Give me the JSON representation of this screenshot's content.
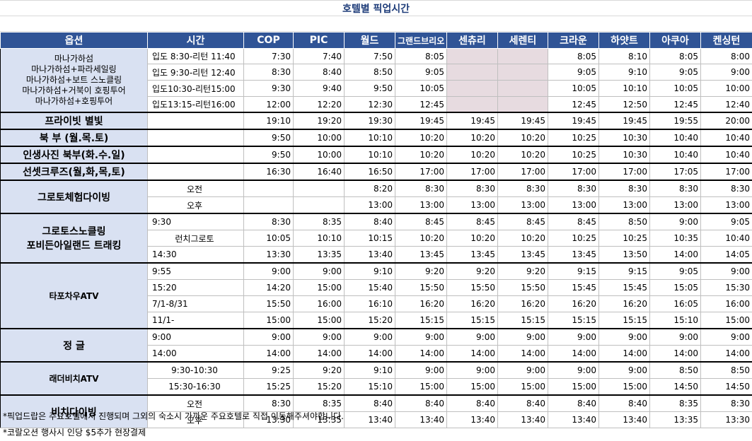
{
  "title": "호텔별 픽업시간",
  "headers": [
    "옵션",
    "시간",
    "COP",
    "PIC",
    "월드",
    "그랜드브리오",
    "센츄리",
    "세렌티",
    "크라운",
    "하얏트",
    "아쿠아",
    "켄싱턴"
  ],
  "groups": [
    {
      "name_lines": [
        "마나가하섬",
        "마나가하섬+파라세일링",
        "마나가하섬+보트 스노클링",
        "마나가하섬+거북이 호핑투어",
        "마나가하섬+호핑투어"
      ],
      "rows": [
        {
          "time": "입도 8:30-리턴 11:40",
          "values": [
            "7:30",
            "7:40",
            "7:50",
            "8:05",
            "",
            "",
            "8:05",
            "8:10",
            "8:05",
            "8:00"
          ]
        },
        {
          "time": "입도 9:30-리턴 12:40",
          "values": [
            "8:30",
            "8:40",
            "8:50",
            "9:05",
            "",
            "",
            "9:05",
            "9:10",
            "9:05",
            "9:00"
          ]
        },
        {
          "time": "입도10:30-리턴15:00",
          "values": [
            "9:30",
            "9:40",
            "9:50",
            "10:05",
            "",
            "",
            "10:05",
            "10:10",
            "10:05",
            "10:00"
          ]
        },
        {
          "time": "입도13:15-리턴16:00",
          "values": [
            "12:00",
            "12:20",
            "12:30",
            "12:45",
            "",
            "",
            "12:45",
            "12:50",
            "12:45",
            "12:40"
          ]
        }
      ]
    },
    {
      "name_lines": [
        "프라이빗 별빛"
      ],
      "rows": [
        {
          "time": "",
          "values": [
            "19:10",
            "19:20",
            "19:30",
            "19:45",
            "19:45",
            "19:45",
            "19:45",
            "19:45",
            "19:55",
            "20:00"
          ]
        }
      ]
    },
    {
      "name_lines": [
        "북  부 (월.목.토)"
      ],
      "rows": [
        {
          "time": "",
          "values": [
            "9:50",
            "10:00",
            "10:10",
            "10:20",
            "10:20",
            "10:20",
            "10:25",
            "10:30",
            "10:40",
            "10:40"
          ]
        }
      ]
    },
    {
      "name_lines": [
        "인생사진 북부(화.수.일)"
      ],
      "rows": [
        {
          "time": "",
          "values": [
            "9:50",
            "10:00",
            "10:10",
            "10:20",
            "10:20",
            "10:20",
            "10:25",
            "10:30",
            "10:40",
            "10:40"
          ]
        }
      ]
    },
    {
      "name_lines": [
        "선셋크루즈(월,화,목,토)"
      ],
      "rows": [
        {
          "time": "",
          "values": [
            "16:30",
            "16:40",
            "16:50",
            "17:00",
            "17:00",
            "17:00",
            "17:00",
            "17:00",
            "17:05",
            "17:00"
          ]
        }
      ]
    },
    {
      "name_lines": [
        "그로토체험다이빙"
      ],
      "rows": [
        {
          "time": "오전",
          "values": [
            "",
            "",
            "8:20",
            "8:30",
            "8:30",
            "8:30",
            "8:30",
            "8:30",
            "8:30",
            "8:30"
          ]
        },
        {
          "time": "오후",
          "values": [
            "",
            "",
            "13:00",
            "13:00",
            "13:00",
            "13:00",
            "13:00",
            "13:00",
            "13:00",
            "13:00"
          ]
        }
      ]
    },
    {
      "name_lines": [
        "그로토스노클링",
        "포비든아일랜드 트래킹"
      ],
      "rows": [
        {
          "time": "9:30",
          "values": [
            "8:30",
            "8:35",
            "8:40",
            "8:45",
            "8:45",
            "8:45",
            "8:45",
            "8:50",
            "9:00",
            "9:05"
          ]
        },
        {
          "time": "런치그로토",
          "values": [
            "10:05",
            "10:10",
            "10:15",
            "10:20",
            "10:20",
            "10:20",
            "10:25",
            "10:25",
            "10:35",
            "10:40"
          ]
        },
        {
          "time": "14:30",
          "values": [
            "13:30",
            "13:35",
            "13:40",
            "13:45",
            "13:45",
            "13:45",
            "13:45",
            "13:50",
            "14:00",
            "14:05"
          ]
        }
      ]
    },
    {
      "name_lines": [
        "타포차우ATV"
      ],
      "rows": [
        {
          "time": "9:55",
          "values": [
            "9:00",
            "9:00",
            "9:10",
            "9:20",
            "9:20",
            "9:20",
            "9:15",
            "9:15",
            "9:05",
            "9:00"
          ]
        },
        {
          "time": "15:20",
          "values": [
            "14:20",
            "15:00",
            "15:40",
            "15:50",
            "15:50",
            "15:50",
            "15:45",
            "15:45",
            "15:05",
            "15:30"
          ]
        },
        {
          "time": "7/1-8/31",
          "values": [
            "15:50",
            "16:00",
            "16:10",
            "16:20",
            "16:20",
            "16:20",
            "16:20",
            "16:20",
            "16:05",
            "16:00"
          ]
        },
        {
          "time": "11/1-",
          "values": [
            "15:00",
            "15:00",
            "15:20",
            "15:15",
            "15:15",
            "15:15",
            "15:15",
            "15:15",
            "15:10",
            "15:00"
          ]
        }
      ]
    },
    {
      "name_lines": [
        "정   글"
      ],
      "rows": [
        {
          "time": "9:00",
          "values": [
            "9:00",
            "9:00",
            "9:00",
            "9:00",
            "9:00",
            "9:00",
            "9:00",
            "9:00",
            "9:00",
            "9:00"
          ]
        },
        {
          "time": "14:00",
          "values": [
            "14:00",
            "14:00",
            "14:00",
            "14:00",
            "14:00",
            "14:00",
            "14:00",
            "14:00",
            "14:00",
            "14:00"
          ]
        }
      ]
    },
    {
      "name_lines": [
        "래더비치ATV"
      ],
      "rows": [
        {
          "time": "9:30-10:30",
          "values": [
            "9:25",
            "9:20",
            "9:10",
            "9:00",
            "9:00",
            "9:00",
            "9:00",
            "9:00",
            "8:50",
            "8:50"
          ]
        },
        {
          "time": "15:30-16:30",
          "values": [
            "15:25",
            "15:20",
            "15:10",
            "15:00",
            "15:00",
            "15:00",
            "15:00",
            "15:00",
            "14:50",
            "14:50"
          ]
        }
      ]
    },
    {
      "name_lines": [
        "비치다이빙"
      ],
      "rows": [
        {
          "time": "오전",
          "values": [
            "8:30",
            "8:35",
            "8:40",
            "8:40",
            "8:40",
            "8:40",
            "8:40",
            "8:40",
            "8:35",
            "8:30"
          ]
        },
        {
          "time": "오후",
          "values": [
            "13:30",
            "13:35",
            "13:40",
            "13:40",
            "13:40",
            "13:40",
            "13:40",
            "13:40",
            "13:35",
            "13:30"
          ]
        }
      ]
    }
  ],
  "notes": [
    "*픽업드랍은 주요호텔에서 진행되며 그외의 숙소시 가까운 주요호텔로 직접 이동해주셔야합니다.",
    "*코랄오션 행사시 인당 $5추가 현장결제"
  ],
  "colors": {
    "header_bg": "#305496",
    "name_bg": "#d9e1f2",
    "empty_cell_bg": "#e7dbe0",
    "title": "#1f3d7a"
  }
}
